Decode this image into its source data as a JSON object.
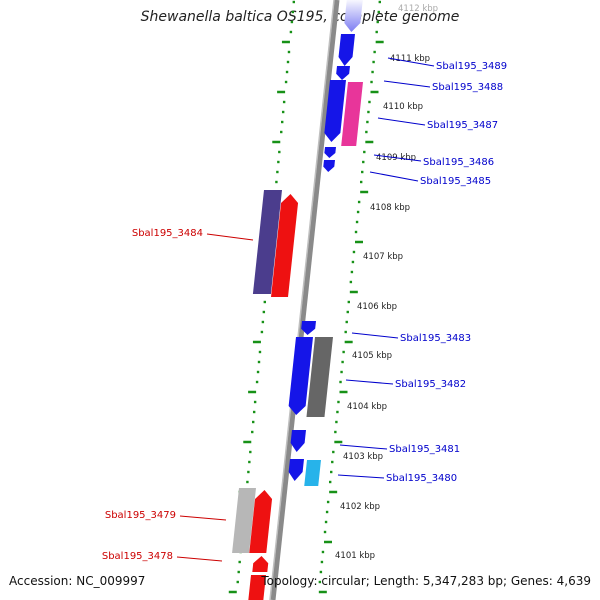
{
  "title": "Shewanella baltica OS195, complete genome",
  "accession_text": "Accession: NC_009997",
  "topology_text": "Topology: circular; Length: 5,347,283 bp; Genes: 4,639",
  "colors": {
    "blue": "#1515e8",
    "blue_light": "#7c7cf2",
    "red": "#ee1111",
    "purple": "#4b3d8d",
    "pink": "#e8359a",
    "gray": "#666666",
    "light_gray": "#b7b7b7",
    "cyan": "#27b3ea",
    "axis": "#8a8a8a",
    "dots": "#179117",
    "label_blue": "#0000cc",
    "label_red": "#cc0000"
  },
  "kbp_ticks": [
    {
      "label": "4112 kbp",
      "faded": true
    },
    {
      "label": "4111 kbp"
    },
    {
      "label": "4110 kbp"
    },
    {
      "label": "4109 kbp"
    },
    {
      "label": "4108 kbp"
    },
    {
      "label": "4107 kbp"
    },
    {
      "label": "4106 kbp"
    },
    {
      "label": "4105 kbp"
    },
    {
      "label": "4104 kbp"
    },
    {
      "label": "4103 kbp"
    },
    {
      "label": "4102 kbp"
    },
    {
      "label": "4101 kbp"
    }
  ],
  "gene_labels": [
    {
      "text": "Sbal195_3489",
      "color": "label_blue"
    },
    {
      "text": "Sbal195_3488",
      "color": "label_blue"
    },
    {
      "text": "Sbal195_3487",
      "color": "label_blue"
    },
    {
      "text": "Sbal195_3486",
      "color": "label_blue"
    },
    {
      "text": "Sbal195_3485",
      "color": "label_blue"
    },
    {
      "text": "Sbal195_3484",
      "color": "label_red"
    },
    {
      "text": "Sbal195_3483",
      "color": "label_blue"
    },
    {
      "text": "Sbal195_3482",
      "color": "label_blue"
    },
    {
      "text": "Sbal195_3481",
      "color": "label_blue"
    },
    {
      "text": "Sbal195_3480",
      "color": "label_blue"
    },
    {
      "text": "Sbal195_3479",
      "color": "label_red"
    },
    {
      "text": "Sbal195_3478",
      "color": "label_red"
    }
  ]
}
